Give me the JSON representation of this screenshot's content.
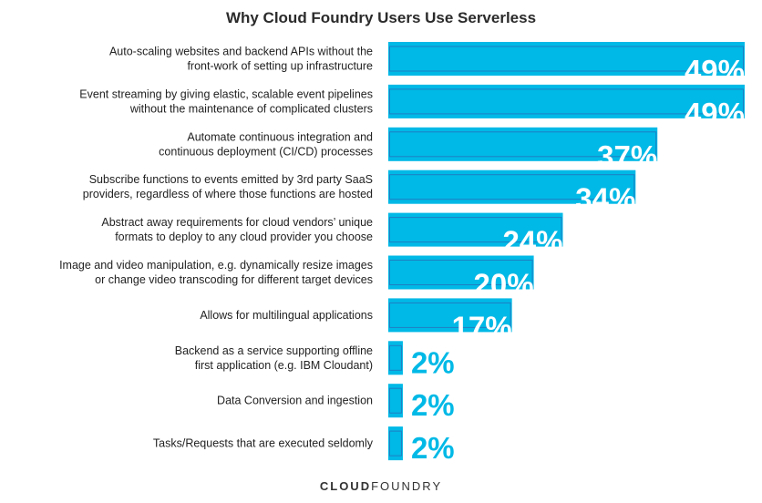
{
  "chart_data": {
    "type": "bar",
    "orientation": "horizontal",
    "title": "Why Cloud Foundry Users Use Serverless",
    "categories": [
      [
        "Auto-scaling websites and backend APIs without the",
        "front-work of setting up infrastructure"
      ],
      [
        "Event streaming by giving elastic, scalable event pipelines",
        "without the maintenance of complicated clusters"
      ],
      [
        "Automate continuous integration and",
        "continuous deployment (CI/CD) processes"
      ],
      [
        "Subscribe functions to events emitted by 3rd party SaaS",
        "providers, regardless of where those functions are hosted"
      ],
      [
        "Abstract away requirements for cloud vendors’ unique",
        "formats to deploy to any cloud provider you choose"
      ],
      [
        "Image and video manipulation, e.g. dynamically resize images",
        "or change video transcoding for different target devices"
      ],
      [
        "Allows for multilingual applications"
      ],
      [
        "Backend as a service supporting offline",
        "first application (e.g. IBM Cloudant)"
      ],
      [
        "Data Conversion and ingestion"
      ],
      [
        "Tasks/Requests that are executed seldomly"
      ]
    ],
    "values": [
      49,
      49,
      37,
      34,
      24,
      20,
      17,
      2,
      2,
      2
    ],
    "labels": [
      "49%",
      "49%",
      "37%",
      "34%",
      "24%",
      "20%",
      "17%",
      "2%",
      "2%",
      "2%"
    ],
    "unit": "%",
    "xlim": [
      0,
      49
    ],
    "grid": false,
    "colors": {
      "bar": "#00B9E6",
      "bar_border": "#1E7FC4",
      "label_inside": "#FFFFFF",
      "label_outside": "#00B9E6"
    }
  },
  "footer": {
    "logo_left": "CLOUD",
    "logo_right": "FOUNDRY"
  }
}
